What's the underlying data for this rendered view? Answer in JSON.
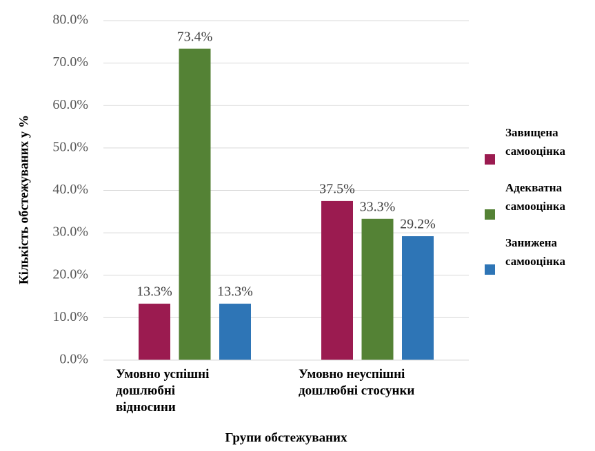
{
  "chart_data": {
    "type": "bar",
    "y_axis_label": "Кількість обстежуваних у %",
    "x_axis_label": "Групи обстежуваних",
    "categories": [
      "Умовно успішні дошлюбні відносини",
      "Умовно неуспішні дошлюбні стосунки"
    ],
    "series": [
      {
        "name": "Завищена самооцінка",
        "color": "#9b1b50",
        "values": [
          13.3,
          37.5
        ],
        "value_labels": [
          "13.3%",
          "37.5%"
        ]
      },
      {
        "name": "Адекватна самооцінка",
        "color": "#548235",
        "values": [
          73.4,
          33.3
        ],
        "value_labels": [
          "73.4%",
          "33.3%"
        ]
      },
      {
        "name": "Занижена самооцінка",
        "color": "#2e75b6",
        "values": [
          13.3,
          29.2
        ],
        "value_labels": [
          "13.3%",
          "29.2%"
        ]
      }
    ],
    "ylim": [
      0,
      80
    ],
    "yticks": [
      {
        "value": 0,
        "label": "0.0%"
      },
      {
        "value": 10,
        "label": "10.0%"
      },
      {
        "value": 20,
        "label": "20.0%"
      },
      {
        "value": 30,
        "label": "30.0%"
      },
      {
        "value": 40,
        "label": "40.0%"
      },
      {
        "value": 50,
        "label": "50.0%"
      },
      {
        "value": 60,
        "label": "60.0%"
      },
      {
        "value": 70,
        "label": "70.0%"
      },
      {
        "value": 80,
        "label": "80.0%"
      }
    ],
    "grid": true,
    "legend": "right"
  }
}
